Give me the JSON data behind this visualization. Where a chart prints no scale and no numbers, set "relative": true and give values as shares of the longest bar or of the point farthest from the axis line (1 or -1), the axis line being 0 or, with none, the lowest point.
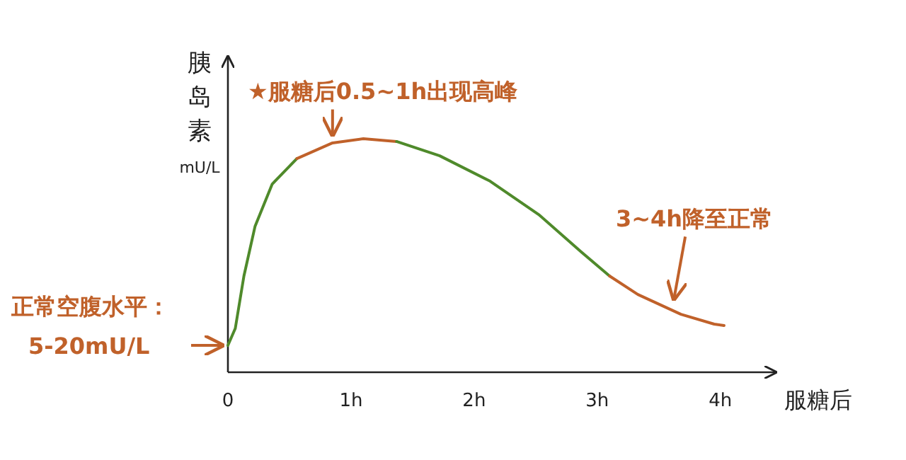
{
  "chart_data": {
    "type": "line",
    "relative": true,
    "ylabel": "胰岛素 mU/L",
    "xlabel": "服糖后",
    "xlim": [
      0,
      4.45
    ],
    "xticks": [
      {
        "value": 0,
        "label": "0"
      },
      {
        "value": 1,
        "label": "1h"
      },
      {
        "value": 2,
        "label": "2h"
      },
      {
        "value": 3,
        "label": "3h"
      },
      {
        "value": 4,
        "label": "4h"
      }
    ],
    "grid": false,
    "marker": "none",
    "line_style": "solid",
    "series": [
      {
        "color": "#4f8a2b",
        "x": [
          0,
          0.06,
          0.13,
          0.22,
          0.36,
          0.56
        ],
        "values": [
          0.115,
          0.188,
          0.412,
          0.624,
          0.806,
          0.915
        ]
      },
      {
        "color": "#c0612a",
        "x": [
          0.56,
          0.85,
          1.1,
          1.37
        ],
        "values": [
          0.915,
          0.982,
          1.0,
          0.988
        ]
      },
      {
        "color": "#4f8a2b",
        "x": [
          1.37,
          1.72,
          2.13,
          2.53,
          2.87,
          3.1
        ],
        "values": [
          0.988,
          0.927,
          0.818,
          0.673,
          0.515,
          0.412
        ]
      },
      {
        "color": "#c0612a",
        "x": [
          3.1,
          3.33,
          3.68,
          3.95,
          4.03
        ],
        "values": [
          0.412,
          0.333,
          0.248,
          0.206,
          0.2
        ]
      }
    ],
    "annotations": [
      {
        "text": "★服糖后0.5~1h出现高峰",
        "x": 0.85,
        "y": 0.98
      },
      {
        "text": "3~4h降至正常",
        "x": 3.6,
        "y": 0.29
      },
      {
        "text": "正常空腹水平：\n5-20mU/L",
        "x": 0,
        "y": 0.115
      }
    ]
  }
}
